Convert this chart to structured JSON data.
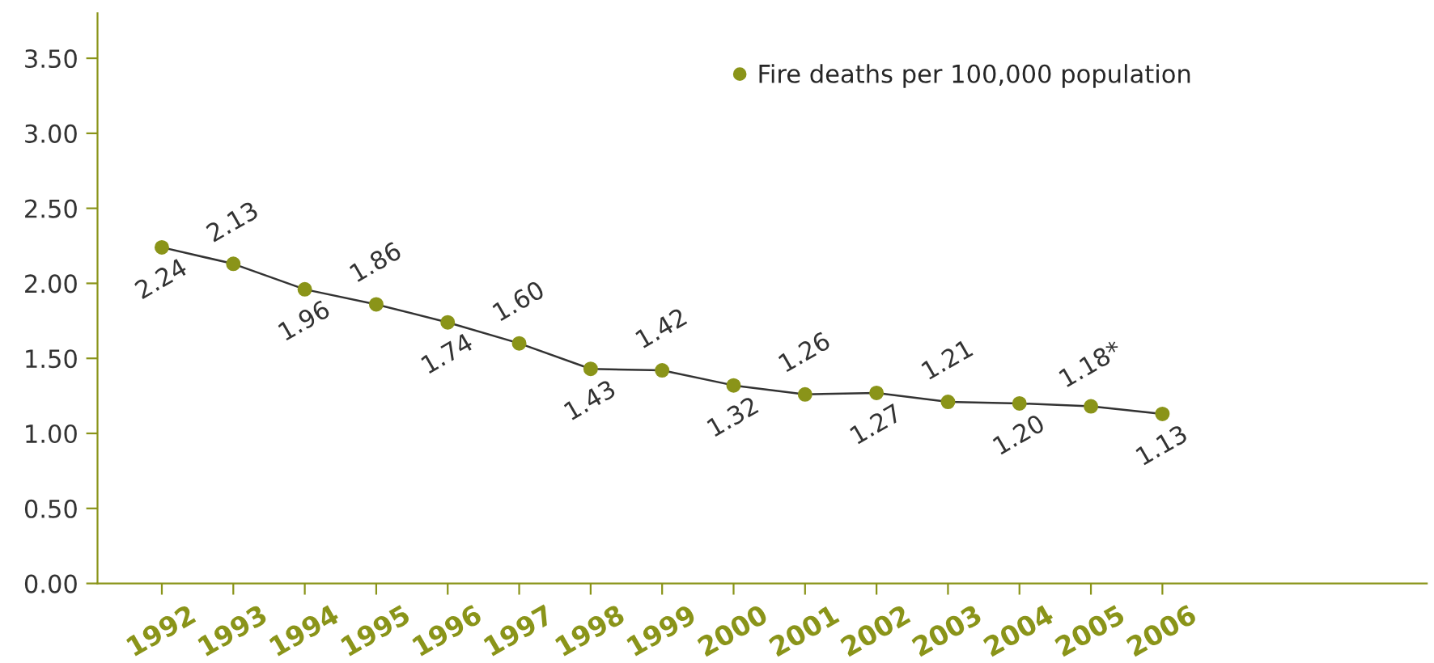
{
  "chart_data": {
    "type": "line",
    "categories": [
      "1992",
      "1993",
      "1994",
      "1995",
      "1996",
      "1997",
      "1998",
      "1999",
      "2000",
      "2001",
      "2002",
      "2003",
      "2004",
      "2005",
      "2006"
    ],
    "series": [
      {
        "name": "Fire deaths per 100,000 population",
        "color": "#8a9419",
        "values": [
          2.24,
          2.13,
          1.96,
          1.86,
          1.74,
          1.6,
          1.43,
          1.42,
          1.32,
          1.26,
          1.27,
          1.21,
          1.2,
          1.18,
          1.13
        ],
        "value_labels": [
          "2.24",
          "2.13",
          "1.96",
          "1.86",
          "1.74",
          "1.60",
          "1.43",
          "1.42",
          "1.32",
          "1.26",
          "1.27",
          "1.21",
          "1.20",
          "1.18*",
          "1.13"
        ]
      }
    ],
    "ylim": [
      0,
      3.8
    ],
    "yticks": [
      {
        "value": 0,
        "label": "0.00"
      },
      {
        "value": 0.5,
        "label": "0.50"
      },
      {
        "value": 1,
        "label": "1.00"
      },
      {
        "value": 1.5,
        "label": "1.50"
      },
      {
        "value": 2,
        "label": "2.00"
      },
      {
        "value": 2.5,
        "label": "2.50"
      },
      {
        "value": 3,
        "label": "3.00"
      },
      {
        "value": 3.5,
        "label": "3.50"
      }
    ],
    "grid": false,
    "legend": "top right",
    "marker": "circle",
    "line_style": "solid"
  }
}
